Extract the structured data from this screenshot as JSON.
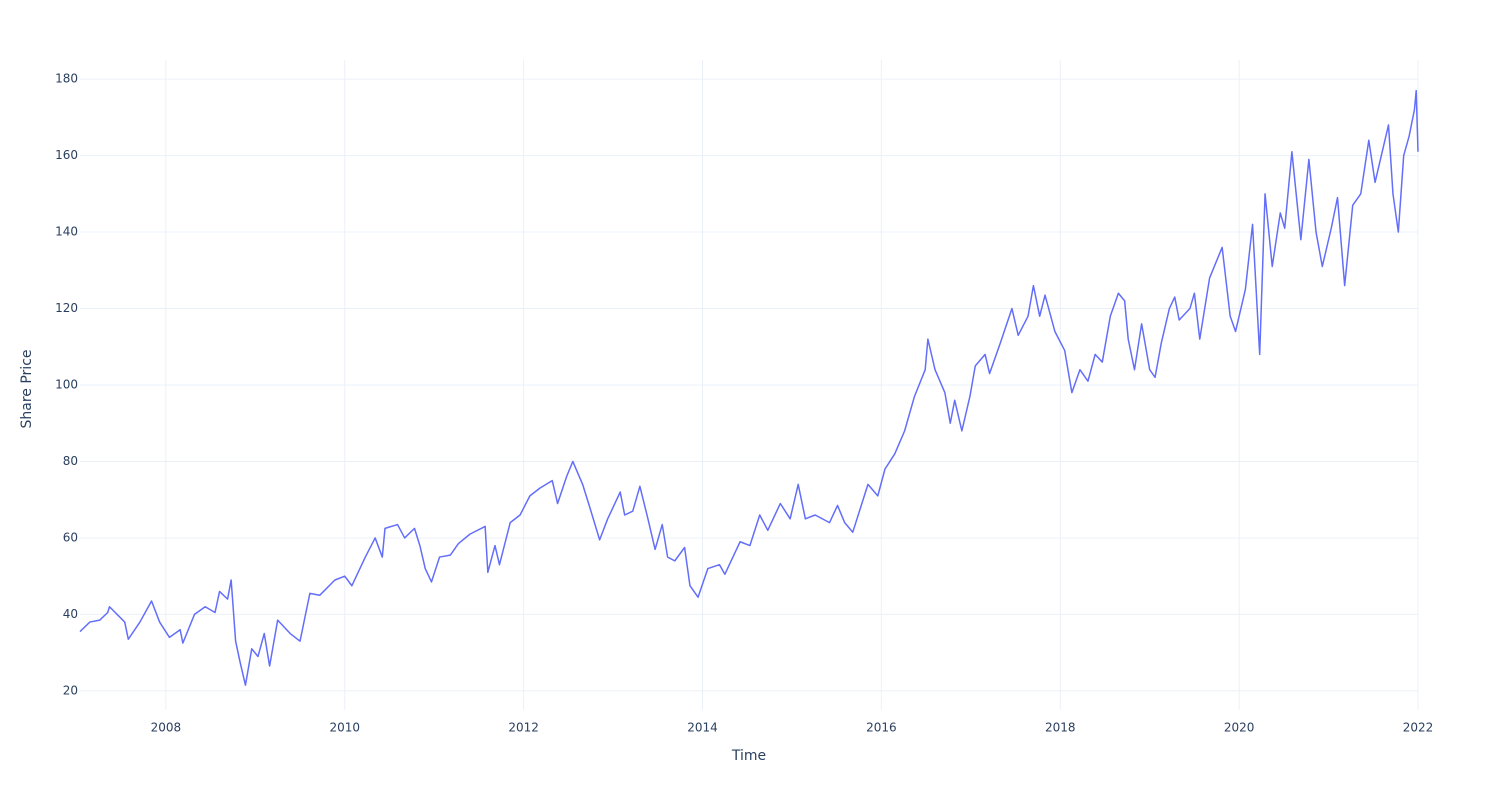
{
  "chart_data": {
    "type": "line",
    "x_label": "Time",
    "y_label": "Share Price",
    "color": "#636efa",
    "grid": true,
    "xlim": [
      2007.04,
      2022.0
    ],
    "xticks": [
      2008,
      2010,
      2012,
      2014,
      2016,
      2018,
      2020,
      2022
    ],
    "ylim": [
      15,
      185
    ],
    "yticks": [
      20,
      40,
      60,
      80,
      100,
      120,
      140,
      160,
      180
    ],
    "x": [
      2007.04,
      2007.15,
      2007.26,
      2007.35,
      2007.37,
      2007.54,
      2007.58,
      2007.71,
      2007.84,
      2007.93,
      2008.04,
      2008.16,
      2008.19,
      2008.32,
      2008.44,
      2008.55,
      2008.6,
      2008.69,
      2008.73,
      2008.78,
      2008.83,
      2008.89,
      2008.96,
      2009.03,
      2009.1,
      2009.16,
      2009.25,
      2009.39,
      2009.5,
      2009.61,
      2009.72,
      2009.89,
      2010.0,
      2010.08,
      2010.23,
      2010.34,
      2010.42,
      2010.45,
      2010.59,
      2010.67,
      2010.78,
      2010.84,
      2010.9,
      2010.97,
      2011.06,
      2011.18,
      2011.27,
      2011.4,
      2011.57,
      2011.6,
      2011.68,
      2011.73,
      2011.85,
      2011.96,
      2012.07,
      2012.18,
      2012.32,
      2012.38,
      2012.48,
      2012.55,
      2012.66,
      2012.74,
      2012.85,
      2012.94,
      2013.08,
      2013.13,
      2013.22,
      2013.3,
      2013.39,
      2013.47,
      2013.55,
      2013.61,
      2013.69,
      2013.8,
      2013.86,
      2013.95,
      2014.06,
      2014.19,
      2014.25,
      2014.42,
      2014.53,
      2014.64,
      2014.73,
      2014.87,
      2014.98,
      2015.07,
      2015.15,
      2015.26,
      2015.42,
      2015.51,
      2015.59,
      2015.68,
      2015.85,
      2015.96,
      2016.04,
      2016.15,
      2016.26,
      2016.37,
      2016.49,
      2016.52,
      2016.6,
      2016.71,
      2016.77,
      2016.82,
      2016.9,
      2016.99,
      2017.05,
      2017.16,
      2017.21,
      2017.33,
      2017.46,
      2017.53,
      2017.64,
      2017.7,
      2017.77,
      2017.83,
      2017.94,
      2018.05,
      2018.13,
      2018.22,
      2018.31,
      2018.39,
      2018.47,
      2018.56,
      2018.65,
      2018.72,
      2018.76,
      2018.83,
      2018.91,
      2019.0,
      2019.06,
      2019.13,
      2019.22,
      2019.28,
      2019.33,
      2019.45,
      2019.5,
      2019.56,
      2019.67,
      2019.81,
      2019.9,
      2019.96,
      2020.07,
      2020.15,
      2020.19,
      2020.23,
      2020.29,
      2020.37,
      2020.46,
      2020.51,
      2020.59,
      2020.69,
      2020.78,
      2020.86,
      2020.93,
      2021.03,
      2021.1,
      2021.18,
      2021.27,
      2021.36,
      2021.45,
      2021.52,
      2021.67,
      2021.72,
      2021.78,
      2021.84,
      2021.9,
      2021.96,
      2021.98,
      2022.0
    ],
    "values": [
      35.5,
      38,
      38.5,
      40.5,
      42,
      38,
      33.5,
      38,
      43.5,
      38,
      34,
      36,
      32.5,
      40,
      42,
      40.5,
      46,
      44,
      49,
      33,
      27.5,
      21.5,
      31,
      29,
      35,
      26.5,
      38.5,
      35,
      33,
      45.5,
      45,
      49,
      50,
      47.5,
      55,
      60,
      55,
      62.5,
      63.5,
      60,
      62.5,
      58,
      52,
      48.5,
      55,
      55.5,
      58.5,
      61,
      63,
      51,
      58,
      53,
      64,
      66,
      71,
      73,
      75,
      69,
      76,
      80,
      74,
      68,
      59.5,
      65,
      72,
      66,
      67,
      73.5,
      65,
      57,
      63.5,
      55,
      54,
      57.5,
      47.5,
      44.5,
      52,
      53,
      50.5,
      59,
      58,
      66,
      62,
      69,
      65,
      74,
      65,
      66,
      64,
      68.5,
      64,
      61.5,
      74,
      71,
      78,
      82,
      88,
      97,
      104,
      112,
      104,
      98,
      90,
      96,
      88,
      97,
      105,
      108,
      103,
      111,
      120,
      113,
      118,
      126,
      118,
      123.5,
      114,
      109,
      98,
      104,
      101,
      108,
      106,
      118,
      124,
      122,
      112,
      104,
      116,
      104,
      102,
      111,
      120,
      123,
      117,
      120,
      124,
      112,
      128,
      136,
      118,
      114,
      125,
      142,
      125,
      108,
      150,
      131,
      145,
      141,
      161,
      138,
      159,
      140,
      131,
      141,
      149,
      126,
      147,
      150,
      164,
      153,
      168,
      150,
      140,
      160,
      165,
      172,
      177,
      161
    ]
  }
}
